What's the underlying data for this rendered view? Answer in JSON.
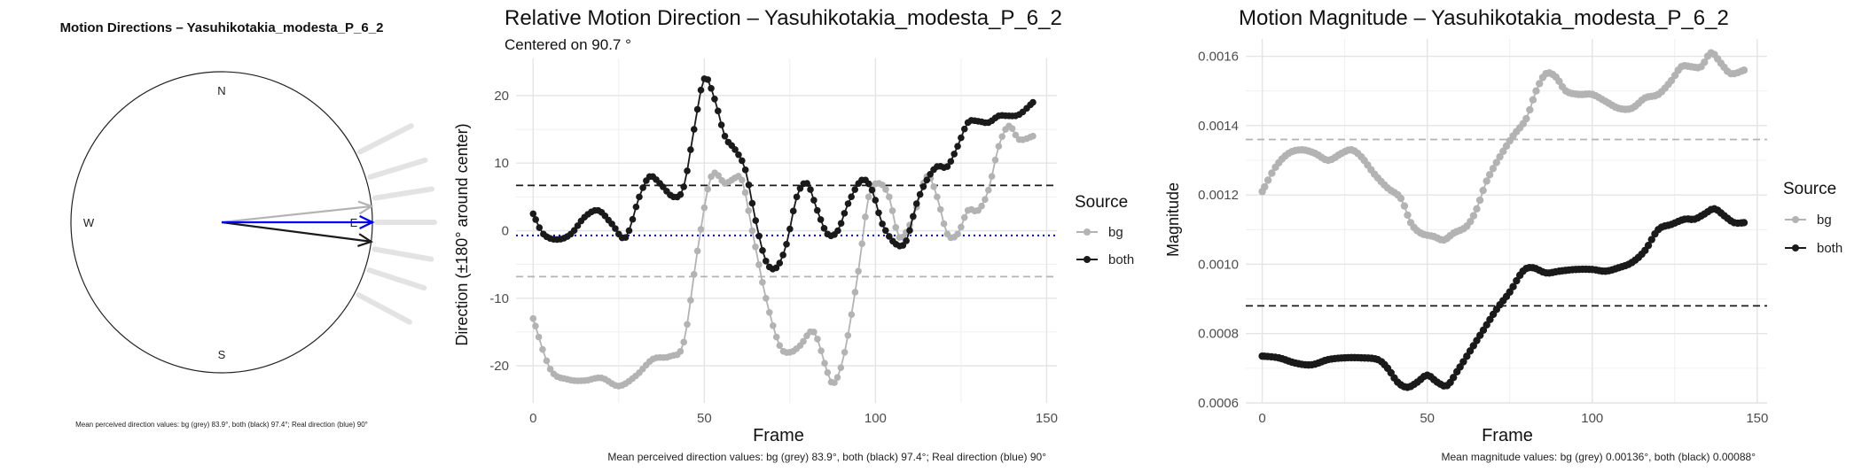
{
  "colors": {
    "bg": "#b3b3b3",
    "both": "#1a1a1a",
    "real": "#0000ee",
    "grid": "#ebebeb"
  },
  "chart_data": [
    {
      "type": "compass",
      "title": "Motion Directions – Yasuhikotakia_modesta_P_6_2",
      "labels": {
        "n": "N",
        "e": "E",
        "s": "S",
        "w": "W"
      },
      "arrows": [
        {
          "name": "bg",
          "angle_deg": 83.9,
          "color": "#b3b3b3"
        },
        {
          "name": "both",
          "angle_deg": 97.4,
          "color": "#1a1a1a"
        },
        {
          "name": "real",
          "angle_deg": 90.0,
          "color": "#0000ee"
        }
      ],
      "faded_ticks_deg": [
        63,
        73,
        81,
        90,
        100,
        108,
        118
      ],
      "caption": "Mean perceived direction values: bg (grey) 83.9°, both (black) 97.4°; Real direction (blue) 90°"
    },
    {
      "type": "line",
      "title": "Relative Motion Direction – Yasuhikotakia_modesta_P_6_2",
      "subtitle": "Centered on  90.7 °",
      "xlabel": "Frame",
      "ylabel": "Direction (±180° around center)",
      "xlim": [
        -5,
        153
      ],
      "ylim": [
        -25.5,
        25.5
      ],
      "xticks": [
        0,
        50,
        100,
        150
      ],
      "yticks": [
        -20,
        -10,
        0,
        10,
        20
      ],
      "hlines": [
        {
          "y": 6.7,
          "color": "#1a1a1a",
          "style": "dashed"
        },
        {
          "y": -6.8,
          "color": "#b3b3b3",
          "style": "dashed"
        },
        {
          "y": -0.7,
          "color": "#0000ee",
          "style": "dotted"
        }
      ],
      "legend": {
        "title": "Source",
        "position": "right",
        "entries": [
          "bg",
          "both"
        ]
      },
      "series": [
        {
          "name": "bg",
          "color": "#b3b3b3",
          "points": [
            [
              0,
              -13
            ],
            [
              5,
              -20.5
            ],
            [
              10,
              -22
            ],
            [
              15,
              -22.2
            ],
            [
              20,
              -21.8
            ],
            [
              25,
              -23
            ],
            [
              30,
              -21.5
            ],
            [
              35,
              -19
            ],
            [
              40,
              -18.6
            ],
            [
              44,
              -16.5
            ],
            [
              48,
              -3
            ],
            [
              52,
              8
            ],
            [
              56,
              7
            ],
            [
              58,
              7.5
            ],
            [
              61,
              7.5
            ],
            [
              64,
              0
            ],
            [
              68,
              -10
            ],
            [
              72,
              -17
            ],
            [
              75,
              -18
            ],
            [
              78,
              -17
            ],
            [
              82,
              -15
            ],
            [
              86,
              -21
            ],
            [
              88,
              -22.5
            ],
            [
              91,
              -18
            ],
            [
              95,
              -6
            ],
            [
              98,
              5
            ],
            [
              101,
              7
            ],
            [
              104,
              5
            ],
            [
              107,
              -1
            ],
            [
              111,
              2
            ],
            [
              115,
              8
            ],
            [
              118,
              5
            ],
            [
              121,
              -0.5
            ],
            [
              124,
              -0.5
            ],
            [
              127,
              3
            ],
            [
              130,
              3
            ],
            [
              133,
              6
            ],
            [
              136,
              12.5
            ],
            [
              139,
              15.5
            ],
            [
              142,
              13.5
            ],
            [
              146,
              14
            ]
          ]
        },
        {
          "name": "both",
          "color": "#1a1a1a",
          "points": [
            [
              0,
              2.5
            ],
            [
              3,
              -0.5
            ],
            [
              7,
              -1.3
            ],
            [
              11,
              -0.5
            ],
            [
              15,
              2
            ],
            [
              19,
              3
            ],
            [
              23,
              1
            ],
            [
              27,
              -1
            ],
            [
              31,
              5
            ],
            [
              34,
              8
            ],
            [
              37,
              7
            ],
            [
              41,
              5
            ],
            [
              44,
              6.5
            ],
            [
              47,
              15
            ],
            [
              50,
              22.5
            ],
            [
              53,
              19.5
            ],
            [
              56,
              14
            ],
            [
              59,
              12
            ],
            [
              62,
              9
            ],
            [
              65,
              1.5
            ],
            [
              68,
              -4.5
            ],
            [
              71,
              -5.5
            ],
            [
              74,
              -2
            ],
            [
              77,
              5
            ],
            [
              80,
              7
            ],
            [
              83,
              3
            ],
            [
              86,
              -0.5
            ],
            [
              89,
              0
            ],
            [
              92,
              4
            ],
            [
              96,
              7.5
            ],
            [
              99,
              6
            ],
            [
              102,
              1
            ],
            [
              106,
              -2
            ],
            [
              109,
              -1.5
            ],
            [
              112,
              4
            ],
            [
              115,
              7.5
            ],
            [
              118,
              9.5
            ],
            [
              121,
              9.5
            ],
            [
              124,
              12.5
            ],
            [
              127,
              16
            ],
            [
              130,
              16.2
            ],
            [
              133,
              16
            ],
            [
              136,
              17
            ],
            [
              139,
              17
            ],
            [
              142,
              17.2
            ],
            [
              146,
              19
            ]
          ]
        }
      ],
      "caption": "Mean perceived direction values: bg (grey) 83.9°, both (black) 97.4°; Real direction (blue) 90°"
    },
    {
      "type": "line",
      "title": "Motion Magnitude – Yasuhikotakia_modesta_P_6_2",
      "xlabel": "Frame",
      "ylabel": "Magnitude",
      "xlim": [
        -5,
        153
      ],
      "ylim": [
        0.0006,
        0.00165
      ],
      "xticks": [
        0,
        50,
        100,
        150
      ],
      "yticks": [
        0.0006,
        0.0008,
        0.001,
        0.0012,
        0.0014,
        0.0016
      ],
      "ytick_labels": [
        "0.0006",
        "0.0008",
        "0.0010",
        "0.0012",
        "0.0014",
        "0.0016"
      ],
      "hlines": [
        {
          "y": 0.00136,
          "color": "#b3b3b3",
          "style": "dashed"
        },
        {
          "y": 0.00088,
          "color": "#1a1a1a",
          "style": "dashed"
        }
      ],
      "legend": {
        "title": "Source",
        "position": "right",
        "entries": [
          "bg",
          "both"
        ]
      },
      "series": [
        {
          "name": "bg",
          "color": "#b3b3b3",
          "points": [
            [
              0,
              0.00121
            ],
            [
              4,
              0.00128
            ],
            [
              8,
              0.00132
            ],
            [
              12,
              0.00133
            ],
            [
              16,
              0.00132
            ],
            [
              20,
              0.0013
            ],
            [
              24,
              0.00132
            ],
            [
              27,
              0.00133
            ],
            [
              30,
              0.00131
            ],
            [
              34,
              0.00126
            ],
            [
              38,
              0.00122
            ],
            [
              42,
              0.00119
            ],
            [
              45,
              0.00112
            ],
            [
              48,
              0.00109
            ],
            [
              52,
              0.00108
            ],
            [
              55,
              0.00107
            ],
            [
              58,
              0.00109
            ],
            [
              62,
              0.00111
            ],
            [
              65,
              0.00116
            ],
            [
              68,
              0.00124
            ],
            [
              72,
              0.00131
            ],
            [
              76,
              0.00137
            ],
            [
              80,
              0.00142
            ],
            [
              83,
              0.0015
            ],
            [
              86,
              0.00155
            ],
            [
              89,
              0.00154
            ],
            [
              92,
              0.0015
            ],
            [
              96,
              0.00149
            ],
            [
              100,
              0.00149
            ],
            [
              104,
              0.00147
            ],
            [
              108,
              0.00145
            ],
            [
              112,
              0.00145
            ],
            [
              116,
              0.00148
            ],
            [
              120,
              0.00149
            ],
            [
              124,
              0.00153
            ],
            [
              127,
              0.00157
            ],
            [
              130,
              0.00157
            ],
            [
              133,
              0.00157
            ],
            [
              136,
              0.00161
            ],
            [
              139,
              0.00158
            ],
            [
              142,
              0.00155
            ],
            [
              146,
              0.00156
            ]
          ]
        },
        {
          "name": "both",
          "color": "#1a1a1a",
          "points": [
            [
              0,
              0.000735
            ],
            [
              5,
              0.00073
            ],
            [
              10,
              0.000715
            ],
            [
              15,
              0.00071
            ],
            [
              20,
              0.000725
            ],
            [
              25,
              0.00073
            ],
            [
              30,
              0.00073
            ],
            [
              35,
              0.000725
            ],
            [
              38,
              0.0007
            ],
            [
              41,
              0.00066
            ],
            [
              44,
              0.000645
            ],
            [
              47,
              0.00066
            ],
            [
              50,
              0.00068
            ],
            [
              53,
              0.00066
            ],
            [
              56,
              0.00065
            ],
            [
              59,
              0.00069
            ],
            [
              63,
              0.00075
            ],
            [
              67,
              0.00081
            ],
            [
              71,
              0.00087
            ],
            [
              75,
              0.00092
            ],
            [
              79,
              0.00098
            ],
            [
              82,
              0.00099
            ],
            [
              86,
              0.000975
            ],
            [
              90,
              0.00098
            ],
            [
              95,
              0.000985
            ],
            [
              100,
              0.000985
            ],
            [
              104,
              0.00098
            ],
            [
              108,
              0.00099
            ],
            [
              112,
              0.001005
            ],
            [
              116,
              0.00104
            ],
            [
              120,
              0.0011
            ],
            [
              124,
              0.001115
            ],
            [
              128,
              0.00113
            ],
            [
              131,
              0.00113
            ],
            [
              134,
              0.001145
            ],
            [
              137,
              0.00116
            ],
            [
              140,
              0.00114
            ],
            [
              143,
              0.00112
            ],
            [
              146,
              0.00112
            ]
          ]
        }
      ],
      "caption": "Mean magnitude values: bg (grey) 0.00136°, both (black) 0.00088°"
    }
  ]
}
